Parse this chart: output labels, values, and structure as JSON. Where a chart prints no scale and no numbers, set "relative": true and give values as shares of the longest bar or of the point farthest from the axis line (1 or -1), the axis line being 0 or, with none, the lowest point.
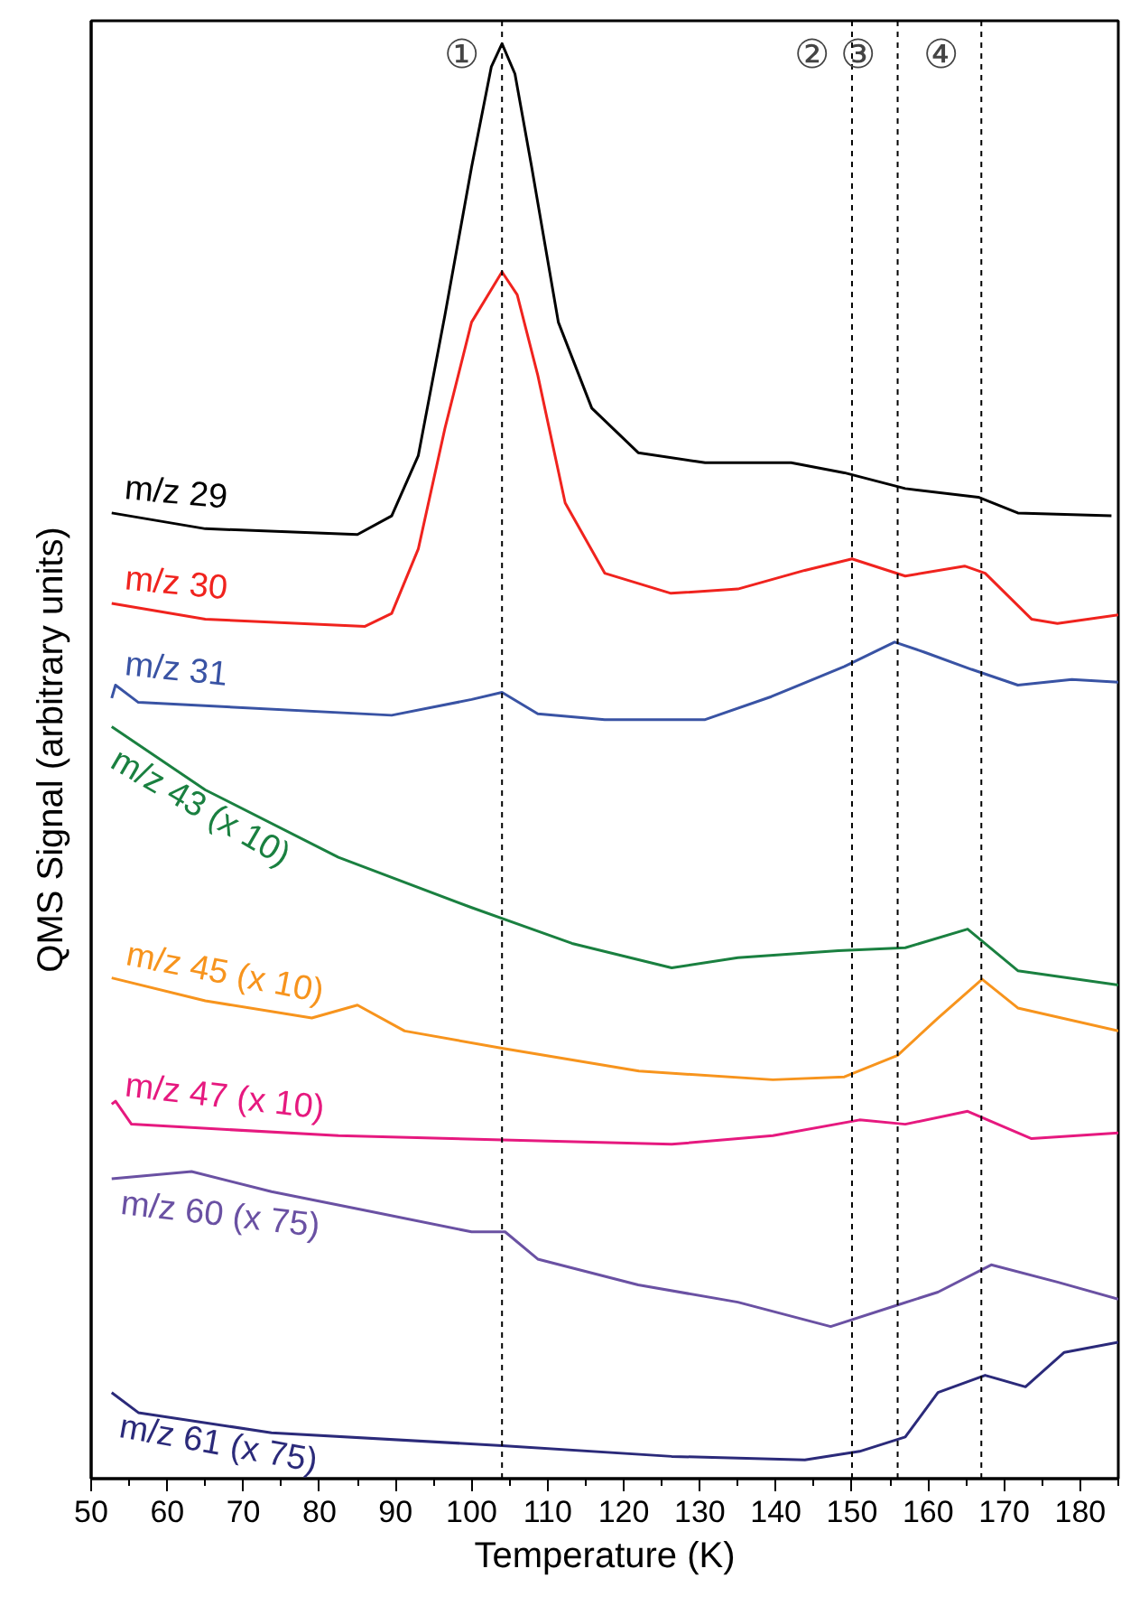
{
  "chart_data": {
    "type": "line",
    "relative": true,
    "xlabel": "Temperature (K)",
    "ylabel": "QMS Signal (arbitrary units)",
    "xlim": [
      50,
      185
    ],
    "xticks": [
      50,
      60,
      70,
      80,
      90,
      100,
      110,
      120,
      130,
      140,
      150,
      160,
      170,
      180
    ],
    "grid": false,
    "legend": false,
    "marker": "none",
    "line_style": "solid",
    "ref_lines": [
      {
        "axis": "x",
        "value": 104,
        "label": "①",
        "line_style": "dashed",
        "color": "#000000"
      },
      {
        "axis": "x",
        "value": 150,
        "label": "②",
        "line_style": "dashed",
        "color": "#000000"
      },
      {
        "axis": "x",
        "value": 156,
        "label": "③",
        "line_style": "dashed",
        "color": "#000000"
      },
      {
        "axis": "x",
        "value": 167,
        "label": "④",
        "line_style": "dashed",
        "color": "#000000"
      }
    ],
    "series": [
      {
        "name": "m/z 29",
        "color": "#000000",
        "x": [
          52.7,
          65,
          85,
          89.5,
          93,
          96.5,
          100,
          102.6,
          104,
          105.7,
          107.9,
          111.4,
          115.8,
          121.9,
          130.7,
          142,
          149,
          157,
          166.6,
          171.8,
          184.1
        ],
        "values": [
          0.673,
          0.662,
          0.658,
          0.671,
          0.713,
          0.811,
          0.914,
          0.984,
          1.0,
          0.979,
          0.914,
          0.806,
          0.746,
          0.715,
          0.708,
          0.708,
          0.701,
          0.69,
          0.684,
          0.673,
          0.671
        ]
      },
      {
        "name": "m/z 30",
        "color": "#f0231e",
        "x": [
          52.7,
          65,
          86,
          89.5,
          93,
          96.5,
          100,
          104,
          106,
          108.7,
          112.3,
          117.5,
          126.2,
          135,
          143.8,
          150,
          157,
          164.8,
          167.5,
          173.6,
          177,
          185
        ],
        "values": [
          0.61,
          0.599,
          0.594,
          0.603,
          0.648,
          0.732,
          0.806,
          0.841,
          0.825,
          0.769,
          0.68,
          0.631,
          0.617,
          0.62,
          0.633,
          0.641,
          0.629,
          0.636,
          0.631,
          0.599,
          0.596,
          0.602
        ]
      },
      {
        "name": "m/z 31",
        "color": "#3953a4",
        "x": [
          52.7,
          53.2,
          56.2,
          89.5,
          100,
          104,
          108.7,
          117.5,
          130.7,
          139.4,
          149,
          155.6,
          159.5,
          165.7,
          171.8,
          178.9,
          185
        ],
        "values": [
          0.544,
          0.553,
          0.541,
          0.532,
          0.543,
          0.548,
          0.533,
          0.529,
          0.529,
          0.545,
          0.566,
          0.583,
          0.576,
          0.564,
          0.553,
          0.557,
          0.555
        ]
      },
      {
        "name": "m/z 43 (x 10)",
        "color": "#1a8040",
        "x": [
          52.7,
          65,
          82.5,
          100,
          113.2,
          126.3,
          135,
          148.2,
          157,
          165.2,
          171.8,
          185
        ],
        "values": [
          0.524,
          0.48,
          0.433,
          0.398,
          0.373,
          0.356,
          0.363,
          0.368,
          0.37,
          0.383,
          0.354,
          0.344
        ]
      },
      {
        "name": "m/z 45 (x 10)",
        "color": "#f7941d",
        "x": [
          52.7,
          65,
          79,
          85,
          91.2,
          104,
          122,
          139.6,
          149,
          156,
          161.3,
          167.1,
          171.8,
          185
        ],
        "values": [
          0.349,
          0.333,
          0.321,
          0.33,
          0.312,
          0.3,
          0.284,
          0.278,
          0.28,
          0.295,
          0.321,
          0.348,
          0.328,
          0.312
        ]
      },
      {
        "name": "m/z 47 (x 10)",
        "color": "#e6197f",
        "x": [
          52.7,
          53.2,
          55.3,
          82.5,
          126.3,
          139.6,
          151,
          157,
          165.2,
          173.6,
          185
        ],
        "values": [
          0.261,
          0.263,
          0.247,
          0.239,
          0.233,
          0.239,
          0.25,
          0.247,
          0.256,
          0.237,
          0.241
        ]
      },
      {
        "name": "m/z 60 (x 75)",
        "color": "#6a51a3",
        "x": [
          52.7,
          63.2,
          73.7,
          86.9,
          100,
          104.4,
          108.7,
          121.9,
          135,
          147.2,
          156,
          161.3,
          168.3,
          177,
          185
        ],
        "values": [
          0.209,
          0.214,
          0.2,
          0.186,
          0.172,
          0.172,
          0.153,
          0.135,
          0.123,
          0.106,
          0.121,
          0.13,
          0.149,
          0.137,
          0.125
        ]
      },
      {
        "name": "m/z 61 (x 75)",
        "color": "#2b2a7a",
        "x": [
          52.7,
          56.2,
          73.7,
          104,
          126.3,
          143.8,
          151,
          157,
          161.3,
          167.5,
          172.8,
          177.9,
          185
        ],
        "values": [
          0.06,
          0.046,
          0.032,
          0.023,
          0.0155,
          0.013,
          0.019,
          0.029,
          0.06,
          0.072,
          0.064,
          0.088,
          0.095
        ]
      }
    ]
  }
}
